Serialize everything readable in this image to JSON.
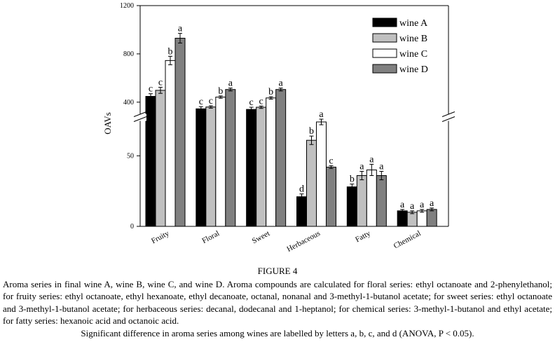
{
  "chart_data": {
    "type": "bar",
    "ylabel": "OAVs",
    "y_axis_break": true,
    "upper_segment": {
      "ylim": [
        300,
        1200
      ],
      "ticks": [
        400,
        800,
        1200
      ]
    },
    "lower_segment": {
      "ylim": [
        0,
        75
      ],
      "ticks": [
        0,
        50
      ]
    },
    "categories": [
      "Fruity",
      "Floral",
      "Sweet",
      "Herbaceous",
      "Fatty",
      "Chemical"
    ],
    "legend_position": "top-right",
    "series": [
      {
        "name": "wine A",
        "color": "#000000",
        "values": [
          448,
          345,
          340,
          21,
          28,
          11
        ],
        "errors": [
          22,
          18,
          18,
          2,
          2,
          1
        ],
        "letters": [
          "c",
          "c",
          "c",
          "d",
          "b",
          "a"
        ]
      },
      {
        "name": "wine B",
        "color": "#c0c0c0",
        "values": [
          498,
          360,
          358,
          61,
          36,
          10
        ],
        "errors": [
          25,
          10,
          10,
          3,
          3,
          1
        ],
        "letters": [
          "c",
          "c",
          "c",
          "b",
          "a",
          "a"
        ]
      },
      {
        "name": "wine C",
        "color": "#ffffff",
        "values": [
          745,
          442,
          435,
          74,
          40,
          11
        ],
        "errors": [
          35,
          10,
          10,
          2,
          4,
          1
        ],
        "letters": [
          "b",
          "b",
          "b",
          "a",
          "a",
          "a"
        ]
      },
      {
        "name": "wine D",
        "color": "#808080",
        "values": [
          930,
          505,
          505,
          42,
          36,
          12
        ],
        "errors": [
          40,
          12,
          12,
          1,
          3,
          1
        ],
        "letters": [
          "a",
          "a",
          "a",
          "c",
          "a",
          "a"
        ]
      }
    ]
  },
  "caption": {
    "title": "FIGURE 4",
    "body": "Aroma series in final wine A, wine B, wine C, and wine D. Aroma compounds are calculated for floral series: ethyl octanoate and 2-phenylethanol; for fruity series: ethyl octanoate, ethyl hexanoate, ethyl decanoate, octanal, nonanal and 3-methyl-1-butanol acetate; for sweet series: ethyl octanoate and 3-methyl-1-butanol acetate; for herbaceous series: decanal, dodecanal and 1-heptanol; for chemical series: 3-methyl-1-butanol and ethyl acetate; for fatty series: hexanoic acid and octanoic acid.",
    "last": "Significant difference in aroma series among wines are labelled by letters a, b, c, and d (ANOVA, P < 0.05)."
  }
}
